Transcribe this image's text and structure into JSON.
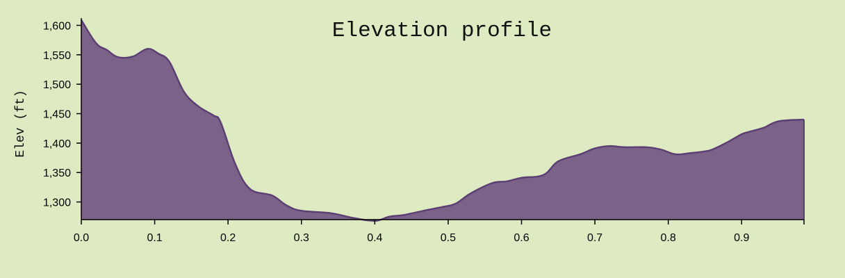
{
  "chart_data": {
    "type": "area",
    "title": "Elevation profile",
    "xlabel": "",
    "ylabel": "Elev (ft)",
    "xlim": [
      0,
      0.985
    ],
    "ylim": [
      1270,
      1610
    ],
    "x_ticks": [
      {
        "value": 0.0,
        "label": "0.0"
      },
      {
        "value": 0.1,
        "label": "0.1"
      },
      {
        "value": 0.2,
        "label": "0.2"
      },
      {
        "value": 0.3,
        "label": "0.3"
      },
      {
        "value": 0.4,
        "label": "0.4"
      },
      {
        "value": 0.5,
        "label": "0.5"
      },
      {
        "value": 0.6,
        "label": "0.6"
      },
      {
        "value": 0.7,
        "label": "0.7"
      },
      {
        "value": 0.8,
        "label": "0.8"
      },
      {
        "value": 0.9,
        "label": "0.9"
      }
    ],
    "y_ticks": [
      {
        "value": 1300,
        "label": "1,300"
      },
      {
        "value": 1350,
        "label": "1,350"
      },
      {
        "value": 1400,
        "label": "1,400"
      },
      {
        "value": 1450,
        "label": "1,450"
      },
      {
        "value": 1500,
        "label": "1,500"
      },
      {
        "value": 1550,
        "label": "1,550"
      },
      {
        "value": 1600,
        "label": "1,600"
      }
    ],
    "grid": false,
    "fill_color": "#7b6289",
    "line_color": "#5c3f73",
    "series": [
      {
        "x": [
          0.0,
          0.02,
          0.035,
          0.05,
          0.07,
          0.09,
          0.105,
          0.12,
          0.14,
          0.16,
          0.18,
          0.19,
          0.21,
          0.23,
          0.26,
          0.28,
          0.3,
          0.34,
          0.37,
          0.4,
          0.42,
          0.44,
          0.47,
          0.49,
          0.51,
          0.53,
          0.56,
          0.58,
          0.6,
          0.63,
          0.65,
          0.68,
          0.7,
          0.72,
          0.74,
          0.77,
          0.79,
          0.81,
          0.83,
          0.85,
          0.86,
          0.88,
          0.9,
          0.91,
          0.93,
          0.95,
          0.985
        ],
        "values": [
          1609,
          1570,
          1558,
          1546,
          1547,
          1560,
          1552,
          1538,
          1487,
          1462,
          1447,
          1435,
          1364,
          1322,
          1311,
          1294,
          1285,
          1281,
          1273,
          1268,
          1275,
          1278,
          1286,
          1291,
          1297,
          1314,
          1332,
          1335,
          1341,
          1346,
          1369,
          1381,
          1391,
          1395,
          1393,
          1393,
          1389,
          1381,
          1383,
          1386,
          1389,
          1401,
          1415,
          1419,
          1426,
          1437,
          1440
        ]
      }
    ]
  }
}
